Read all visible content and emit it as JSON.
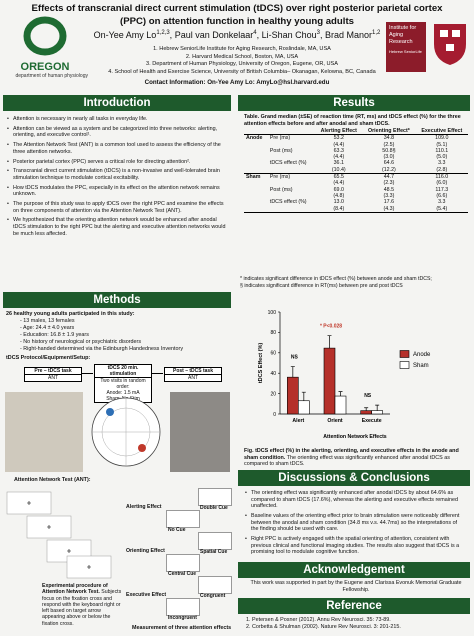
{
  "header": {
    "title": "Effects of transcranial direct current stimulation (tDCS) over right posterior parietal cortex (PPC) on attention function in healthy young adults",
    "authors": [
      {
        "name": "On-Yee Amy Lo",
        "affiliations": "1,2,3"
      },
      {
        "name": "Paul van Donkelaar",
        "affiliations": "4"
      },
      {
        "name": "Li-Shan Chou",
        "affiliations": "3"
      },
      {
        "name": "Brad Manor",
        "affiliations": "1,2"
      }
    ],
    "affiliation_list": [
      "1. Hebrew SeniorLife Institute for Aging Research, Roslindale, MA, USA",
      "2. Harvard Medical School, Boston, MA, USA",
      "3. Department of Human Physiology, University of Oregon, Eugene, OR, USA",
      "4. School of Health and Exercise Science, University of British Columbia– Okanagan, Kelowna, BC, Canada"
    ],
    "contact": "Contact Information: On-Yee Amy Lo: AmyLo@hsl.harvard.edu",
    "logo_left": "OREGON",
    "logo_left_sub": "department of human physiology",
    "logo_right": "Institute for Aging Research",
    "logo_right_sub": "Hebrew SeniorLife"
  },
  "introduction": {
    "heading": "Introduction",
    "bullets": [
      "Attention is necessary in nearly all tasks in everyday life.",
      "Attention can be viewed as a system and be categorized into three networks: alerting, orienting, and executive control¹.",
      "The Attention Network Test (ANT) is a common tool used to assess the efficiency of the three attention networks.",
      "Posterior parietal cortex (PPC) serves a critical role for directing attention².",
      "Transcranial direct current stimulation (tDCS) is a non-invasive and well-tolerated brain stimulation technique to modulate cortical excitability.",
      "How tDCS modulates the PPC, especially in its effect on the attention network remains unknown.",
      "The purpose of this study was to apply tDCS over the right PPC and examine the effects on three components of attention via the Attention Network Test (ANT).",
      "We hypothesized that the orienting attention network would be enhanced after anodal tDCS stimulation to the right PPC but the alerting and executive attention networks would be much less affected."
    ]
  },
  "methods": {
    "heading": "Methods",
    "participants": "26 healthy young adults participated in this study:",
    "participant_details": [
      "- 13 males, 13 females",
      "- Age: 24.4 ± 4.0 years",
      "- Education: 16.8 ± 1.9 years",
      "- No history of neurological or psychiatric disorders",
      "- Right-handed determined via the Edinburgh Handedness Inventory"
    ],
    "protocol_heading": "tDCS Protocol/Equipment/Setup:",
    "flow": [
      {
        "title": "Pre – tDCS task",
        "body": [
          "ANT"
        ]
      },
      {
        "title": "tDCS 20 min. stimulation",
        "body": [
          "Two visits in random order:",
          "Anode: 1.5 mA",
          "Sham: No Stim"
        ]
      },
      {
        "title": "Post – tDCS task",
        "body": [
          "ANT"
        ]
      }
    ],
    "ant_heading": "Attention Network Test (ANT):",
    "ant_caption_title": "Experimental procedure of Attention Network Test.",
    "ant_caption": "Subjects focus on the fixation cross and respond with the keyboard right or left based on target arrow appearing above or below the fixation cross.",
    "effects": [
      {
        "name": "Alerting Effect",
        "left": "No Cue",
        "right": "Double Cue"
      },
      {
        "name": "Orienting Effect",
        "left": "Central Cue",
        "right": "Spatial Cue"
      },
      {
        "name": "Executive Effect",
        "left": "Incongruent",
        "right": "Congruent"
      }
    ],
    "effects_caption": "Measurement of three attention effects"
  },
  "results": {
    "heading": "Results",
    "table_caption": "Table. Grand median (±SE) of reaction time (RT, ms) and tDCS effect (%) for the three attention effects before and after anodal and sham tDCS.",
    "columns": [
      "Alerting Effect",
      "Orienting Effect*",
      "Executive Effect"
    ],
    "rows": [
      {
        "group": "Anode",
        "label": "Pre (ms)",
        "cells": [
          "53.2",
          "34.8",
          "109.0"
        ]
      },
      {
        "cells": [
          "(4.4)",
          "(2.5)",
          "(5.1)"
        ]
      },
      {
        "label": "Post (ms)",
        "cells": [
          "63.3",
          "50.8§",
          "110.1"
        ]
      },
      {
        "cells": [
          "(4.4)",
          "(3.0)",
          "(5.0)"
        ]
      },
      {
        "label": "tDCS effect (%)",
        "cells": [
          "36.1",
          "64.6",
          "3.3"
        ]
      },
      {
        "cells": [
          "(10.4)",
          "(12.2)",
          "(2.8)"
        ]
      },
      {
        "group": "Sham",
        "label": "Pre (ms)",
        "cells": [
          "65.5",
          "44.7",
          "116.0"
        ]
      },
      {
        "cells": [
          "(4.4)",
          "(2.3)",
          "(6.0)"
        ]
      },
      {
        "label": "Post (ms)",
        "cells": [
          "69.0",
          "48.5",
          "117.3"
        ]
      },
      {
        "cells": [
          "(4.8)",
          "(3.3)",
          "(6.6)"
        ]
      },
      {
        "label": "tDCS effect (%)",
        "cells": [
          "13.0",
          "17.6",
          "3.3"
        ]
      },
      {
        "cells": [
          "(8.4)",
          "(4.3)",
          "(5.4)"
        ]
      }
    ],
    "notes": [
      "* indicates significant difference in tDCS effect (%) between anode and sham tDCS;",
      "§ indicates significant difference in RT(ms) between pre and post tDCS"
    ],
    "figure_caption_title": "Fig. tDCS effect (%) in the alerting, orienting, and executive effects in the anode and sham condition.",
    "figure_caption": "The orienting effect was significantly enhanced after anodal tDCS as compared to sham tDCS."
  },
  "chart_data": {
    "type": "bar",
    "title": "Attention Network Effects",
    "y_label": "tDCS Effect (%)",
    "categories": [
      "Alert",
      "Orient",
      "Execute"
    ],
    "series": [
      {
        "name": "Anode",
        "color": "#b5302a",
        "values": [
          36.1,
          64.6,
          3.3
        ],
        "errors": [
          10.4,
          12.2,
          2.8
        ]
      },
      {
        "name": "Sham",
        "color": "#ffffff",
        "values": [
          13.0,
          17.6,
          3.3
        ],
        "errors": [
          8.4,
          4.3,
          5.4
        ]
      }
    ],
    "annotations": [
      "NS",
      "* P<0.028",
      "NS"
    ],
    "ylim": [
      0,
      100
    ],
    "yticks": [
      0,
      20,
      40,
      60,
      80,
      100
    ],
    "grid": false,
    "legend": "right"
  },
  "discussion": {
    "heading": "Discussions & Conclusions",
    "bullets": [
      "The orienting effect was significantly enhanced after anodal tDCS by about 64.6% as compared to sham tDCS (17.6%), whereas the alerting and executive effects remained unaffected.",
      "Baseline values of the orienting effect prior to brain stimulation were noticeably different between the anodal and sham condition (34.8 ms v.s. 44.7ms) so the interpretations of the finding should be used with care.",
      "Right PPC is actively engaged with the spatial orienting of attention, consistent with previous clinical and functional imaging studies. The results also suggest that tDCS is a promising tool to modulate cognitive function."
    ]
  },
  "acknowledgement": {
    "heading": "Acknowledgement",
    "text": "This work was supported in part by the Eugene and Clarissa Evonuk Memorial Graduate Fellowship."
  },
  "reference": {
    "heading": "Reference",
    "items": [
      "1. Petersen & Posner (2012). Annu Rev Neurosci. 35: 73-89.",
      "2. Corbetta & Shulman (2002). Nature Rev Neurosci. 3: 201-215."
    ]
  }
}
